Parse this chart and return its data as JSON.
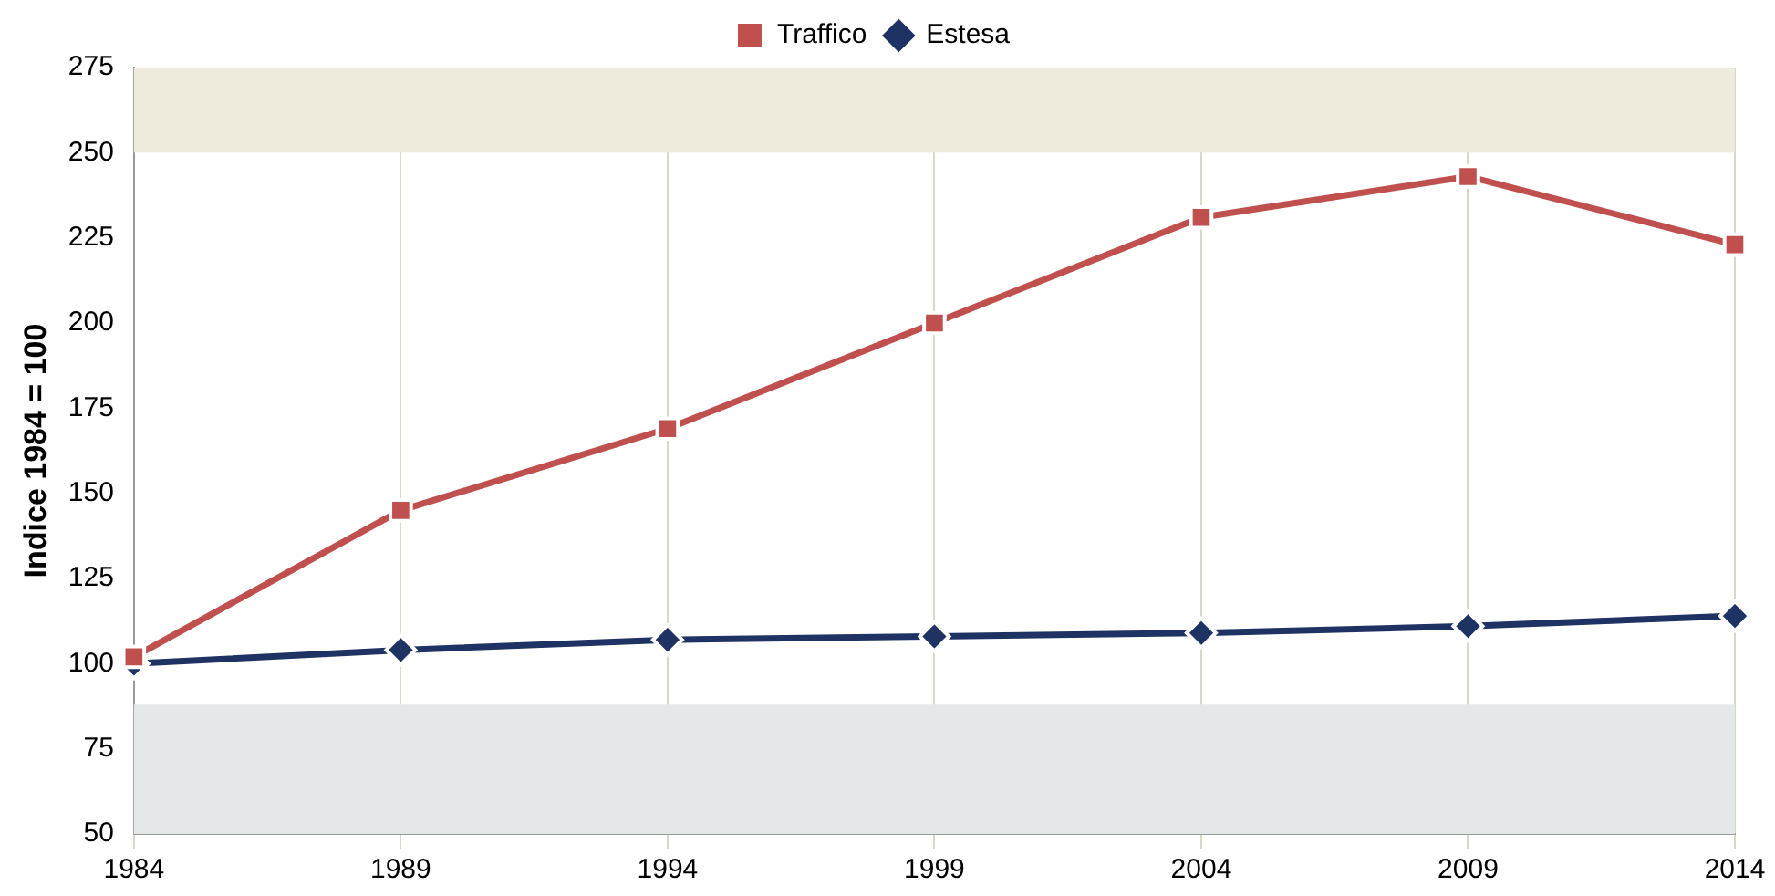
{
  "chart_data": {
    "type": "line",
    "ylabel": "Indice 1984 = 100",
    "x": [
      1984,
      1989,
      1994,
      1999,
      2004,
      2009,
      2014
    ],
    "xlim": [
      1984,
      2014
    ],
    "xticks": [
      1984,
      1989,
      1994,
      1999,
      2004,
      2009,
      2014
    ],
    "ylim": [
      50,
      275
    ],
    "yticks": [
      50,
      75,
      100,
      125,
      150,
      175,
      200,
      225,
      250,
      275
    ],
    "series": [
      {
        "name": "Estesa",
        "color": "#1f3264",
        "marker": "diamond",
        "values": [
          100,
          104,
          107,
          108,
          109,
          111,
          114
        ]
      },
      {
        "name": "Traffico",
        "color": "#c0504d",
        "marker": "square",
        "values": [
          102,
          145,
          169,
          200,
          231,
          243,
          223
        ]
      }
    ],
    "bands": [
      {
        "axis": "y",
        "from": 250,
        "to": 275,
        "color": "#eeeadc"
      },
      {
        "axis": "y",
        "from": 50,
        "to": 88,
        "color": "#e4e8e8"
      }
    ],
    "grid": "x",
    "legend": "top",
    "line_style": "solid"
  }
}
